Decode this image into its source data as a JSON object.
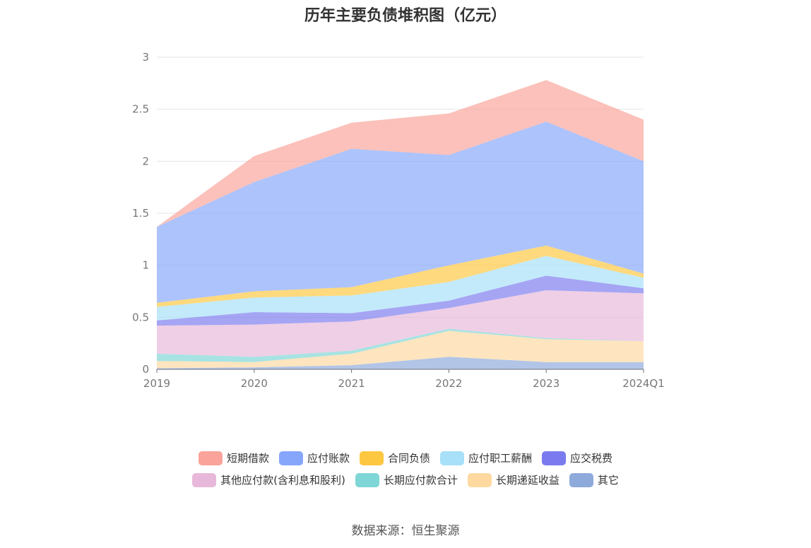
{
  "chart_data": {
    "type": "area",
    "title": "历年主要负债堆积图（亿元）",
    "source": "数据来源：恒生聚源",
    "categories": [
      "2019",
      "2020",
      "2021",
      "2022",
      "2023",
      "2024Q1"
    ],
    "ylim": [
      0,
      3
    ],
    "yticks": [
      "0",
      "0.5",
      "1",
      "1.5",
      "2",
      "2.5",
      "3"
    ],
    "grid": true,
    "legend_position": "bottom",
    "stacked": true,
    "series": [
      {
        "name": "其它",
        "color": "#8eaadb",
        "values": [
          0.01,
          0.02,
          0.04,
          0.12,
          0.07,
          0.07
        ]
      },
      {
        "name": "长期递延收益",
        "color": "#fdd9a0",
        "values": [
          0.07,
          0.05,
          0.11,
          0.25,
          0.22,
          0.2
        ]
      },
      {
        "name": "长期应付款合计",
        "color": "#7fd6d6",
        "values": [
          0.07,
          0.05,
          0.03,
          0.02,
          0.01,
          0.0
        ]
      },
      {
        "name": "其他应付款(含利息和股利)",
        "color": "#e8b8da",
        "values": [
          0.27,
          0.31,
          0.28,
          0.2,
          0.46,
          0.46
        ]
      },
      {
        "name": "应交税费",
        "color": "#7b7bef",
        "values": [
          0.05,
          0.12,
          0.08,
          0.07,
          0.14,
          0.05
        ]
      },
      {
        "name": "应付职工薪酬",
        "color": "#a7e0f8",
        "values": [
          0.13,
          0.14,
          0.17,
          0.18,
          0.19,
          0.1
        ]
      },
      {
        "name": "合同负债",
        "color": "#fdc73f",
        "values": [
          0.04,
          0.06,
          0.08,
          0.16,
          0.1,
          0.04
        ]
      },
      {
        "name": "应付账款",
        "color": "#86a6fb",
        "values": [
          0.73,
          1.05,
          1.33,
          1.06,
          1.19,
          1.08
        ]
      },
      {
        "name": "短期借款",
        "color": "#f9a39a",
        "values": [
          0.0,
          0.25,
          0.25,
          0.4,
          0.4,
          0.4
        ]
      }
    ],
    "legend_rows": [
      [
        "短期借款",
        "应付账款",
        "合同负债",
        "应付职工薪酬",
        "应交税费"
      ],
      [
        "其他应付款(含利息和股利)",
        "长期应付款合计",
        "长期递延收益",
        "其它"
      ]
    ]
  }
}
